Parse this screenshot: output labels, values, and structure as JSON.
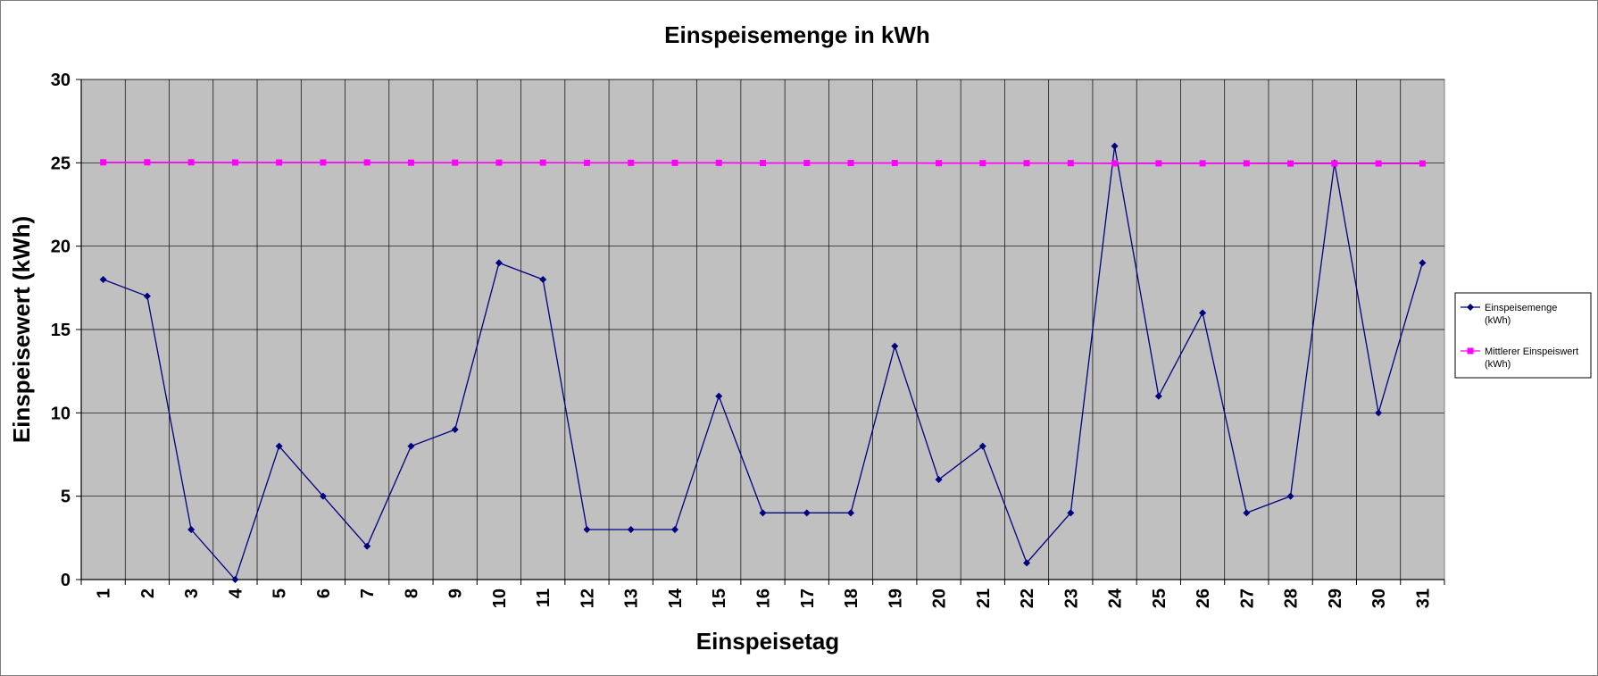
{
  "chart_data": {
    "type": "line",
    "title": "Einspeisemenge in kWh",
    "xlabel": "Einspeisetag",
    "ylabel": "Einspeisewert  (kWh)",
    "ylim": [
      0,
      30
    ],
    "yticks": [
      "0",
      "5",
      "10",
      "15",
      "20",
      "25",
      "30"
    ],
    "categories": [
      "1",
      "2",
      "3",
      "4",
      "5",
      "6",
      "7",
      "8",
      "9",
      "10",
      "11",
      "12",
      "13",
      "14",
      "15",
      "16",
      "17",
      "18",
      "19",
      "20",
      "21",
      "22",
      "23",
      "24",
      "25",
      "26",
      "27",
      "28",
      "29",
      "30",
      "31"
    ],
    "grid": true,
    "legend_position": "right",
    "plot_background": "#c0c0c0",
    "series": [
      {
        "name": "Einspeisemenge (kWh)",
        "legend_lines": [
          "Einspeisemenge",
          "(kWh)"
        ],
        "color": "#000080",
        "marker": "diamond",
        "values": [
          18,
          17,
          3,
          0,
          8,
          5,
          2,
          8,
          9,
          19,
          18,
          3,
          3,
          3,
          11,
          4,
          4,
          4,
          14,
          6,
          8,
          1,
          4,
          26,
          11,
          16,
          4,
          5,
          25,
          10,
          19
        ]
      },
      {
        "name": "Mittlerer Einspeiswert (kWh)",
        "legend_lines": [
          "Mittlerer Einspeiswert",
          "(kWh)"
        ],
        "color": "#ff00ff",
        "marker": "square",
        "values": [
          25.03,
          25.03,
          25.03,
          25.02,
          25.02,
          25.02,
          25.02,
          25.01,
          25.01,
          25.01,
          25.01,
          25.0,
          25.0,
          25.0,
          25.0,
          24.99,
          24.99,
          24.99,
          24.99,
          24.98,
          24.98,
          24.98,
          24.98,
          24.97,
          24.97,
          24.97,
          24.97,
          24.96,
          24.96,
          24.96,
          24.96
        ]
      }
    ]
  }
}
